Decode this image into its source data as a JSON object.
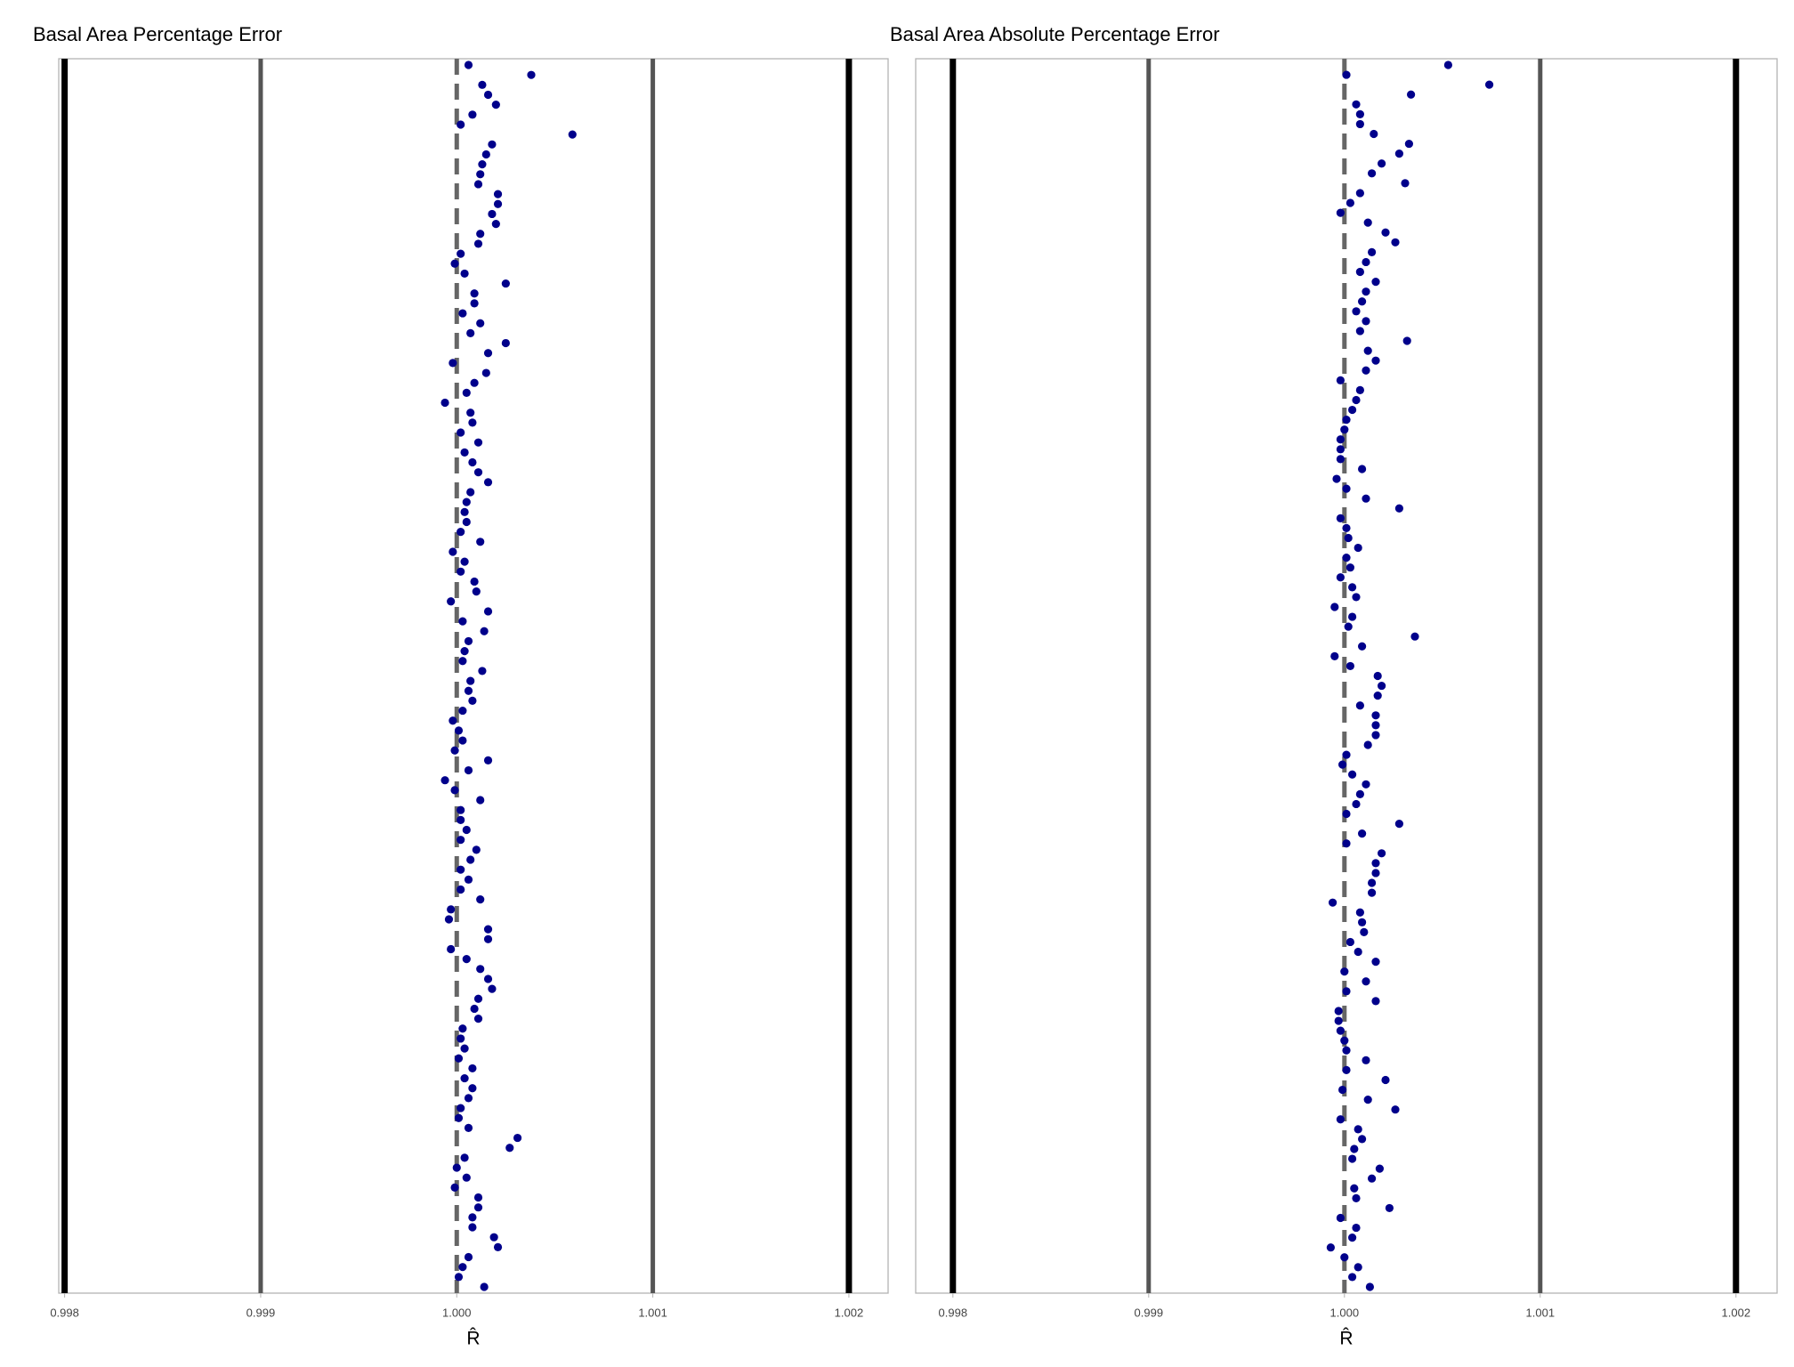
{
  "chart_data": [
    {
      "type": "dot",
      "title": "Basal Area Percentage Error",
      "x_label": "R̂",
      "color": "#00008b",
      "xlim": [
        0.99797,
        1.0022
      ],
      "xticks": [
        0.998,
        0.999,
        {
          "value": 1,
          "label": "1.000"
        },
        1.001,
        1.002
      ],
      "vlines": [
        {
          "value": 0.998,
          "color": "#000000",
          "width": 7,
          "dash": "none"
        },
        {
          "value": 0.999,
          "color": "#555555",
          "width": 5,
          "dash": "none"
        },
        {
          "value": 1,
          "color": "#666666",
          "width": 5,
          "dash": "dashed"
        },
        {
          "value": 1.001,
          "color": "#555555",
          "width": 5,
          "dash": "none"
        },
        {
          "value": 1.002,
          "color": "#000000",
          "width": 7,
          "dash": "none"
        }
      ],
      "values": [
        1.00006,
        1.00038,
        1.00013,
        1.00016,
        1.0002,
        1.00008,
        1.00002,
        1.00059,
        1.00018,
        1.00015,
        1.00013,
        1.00012,
        1.00011,
        1.00021,
        1.00021,
        1.00018,
        1.0002,
        1.00012,
        1.00011,
        1.00002,
        0.99999,
        1.00004,
        1.00025,
        1.00009,
        1.00009,
        1.00003,
        1.00012,
        1.00007,
        1.00025,
        1.00016,
        0.99998,
        1.00015,
        1.00009,
        1.00005,
        0.99994,
        1.00007,
        1.00008,
        1.00002,
        1.00011,
        1.00004,
        1.00008,
        1.00011,
        1.00016,
        1.00007,
        1.00005,
        1.00004,
        1.00005,
        1.00002,
        1.00012,
        0.99998,
        1.00004,
        1.00002,
        1.00009,
        1.0001,
        0.99997,
        1.00016,
        1.00003,
        1.00014,
        1.00006,
        1.00004,
        1.00003,
        1.00013,
        1.00007,
        1.00006,
        1.00008,
        1.00003,
        0.99998,
        1.00001,
        1.00003,
        0.99999,
        1.00016,
        1.00006,
        0.99994,
        0.99999,
        1.00012,
        1.00002,
        1.00002,
        1.00005,
        1.00002,
        1.0001,
        1.00007,
        1.00002,
        1.00006,
        1.00002,
        1.00012,
        0.99997,
        0.99996,
        1.00016,
        1.00016,
        0.99997,
        1.00005,
        1.00012,
        1.00016,
        1.00018,
        1.00011,
        1.00009,
        1.00011,
        1.00003,
        1.00002,
        1.00004,
        1.00001,
        1.00008,
        1.00004,
        1.00008,
        1.00006,
        1.00002,
        1.00001,
        1.00006,
        1.00031,
        1.00027,
        1.00004,
        1,
        1.00005,
        0.99999,
        1.00011,
        1.00011,
        1.00008,
        1.00008,
        1.00019,
        1.00021,
        1.00006,
        1.00003,
        1.00001,
        1.00014
      ]
    },
    {
      "type": "dot",
      "title": "Basal Area Absolute Percentage Error",
      "x_label": "R̂",
      "color": "#00008b",
      "xlim": [
        0.99781,
        1.00221
      ],
      "xticks": [
        0.998,
        0.999,
        {
          "value": 1,
          "label": "1.000"
        },
        1.001,
        1.002
      ],
      "vlines": [
        {
          "value": 0.998,
          "color": "#000000",
          "width": 7,
          "dash": "none"
        },
        {
          "value": 0.999,
          "color": "#555555",
          "width": 5,
          "dash": "none"
        },
        {
          "value": 1,
          "color": "#666666",
          "width": 5,
          "dash": "dashed"
        },
        {
          "value": 1.001,
          "color": "#555555",
          "width": 5,
          "dash": "none"
        },
        {
          "value": 1.002,
          "color": "#000000",
          "width": 7,
          "dash": "none"
        }
      ],
      "values": [
        1.00053,
        1.00001,
        1.00074,
        1.00034,
        1.00006,
        1.00008,
        1.00008,
        1.00015,
        1.00033,
        1.00028,
        1.00019,
        1.00014,
        1.00031,
        1.00008,
        1.00003,
        0.99998,
        1.00012,
        1.00021,
        1.00026,
        1.00014,
        1.00011,
        1.00008,
        1.00016,
        1.00011,
        1.00009,
        1.00006,
        1.00011,
        1.00008,
        1.00032,
        1.00012,
        1.00016,
        1.00011,
        0.99998,
        1.00008,
        1.00006,
        1.00004,
        1.00001,
        1,
        0.99998,
        0.99998,
        0.99998,
        1.00009,
        0.99996,
        1.00001,
        1.00011,
        1.00028,
        0.99998,
        1.00001,
        1.00002,
        1.00007,
        1.00001,
        1.00003,
        0.99998,
        1.00004,
        1.00006,
        0.99995,
        1.00004,
        1.00002,
        1.00036,
        1.00009,
        0.99995,
        1.00003,
        1.00017,
        1.00019,
        1.00017,
        1.00008,
        1.00016,
        1.00016,
        1.00016,
        1.00012,
        1.00001,
        0.99999,
        1.00004,
        1.00011,
        1.00008,
        1.00006,
        1.00001,
        1.00028,
        1.00009,
        1.00001,
        1.00019,
        1.00016,
        1.00016,
        1.00014,
        1.00014,
        0.99994,
        1.00008,
        1.00009,
        1.0001,
        1.00003,
        1.00007,
        1.00016,
        1,
        1.00011,
        1.00001,
        1.00016,
        0.99997,
        0.99997,
        0.99998,
        1,
        1.00001,
        1.00011,
        1.00001,
        1.00021,
        0.99999,
        1.00012,
        1.00026,
        0.99998,
        1.00007,
        1.00009,
        1.00005,
        1.00004,
        1.00018,
        1.00014,
        1.00005,
        1.00006,
        1.00023,
        0.99998,
        1.00006,
        1.00004,
        0.99993,
        1,
        1.00007,
        1.00004,
        1.00013
      ]
    }
  ]
}
